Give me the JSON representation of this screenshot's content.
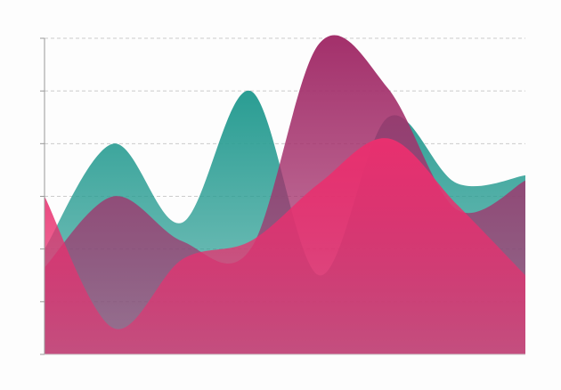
{
  "chart_data": {
    "type": "area",
    "categories": [
      null,
      null,
      null,
      null,
      null,
      null,
      null,
      null
    ],
    "series": [
      {
        "color": "#2a9d93",
        "values": [
          2,
          4,
          2.5,
          5,
          1.5,
          4.5,
          3.25,
          3.4
        ]
      },
      {
        "color": "#a3306b",
        "values": [
          1.65,
          3,
          2.15,
          2,
          5.9,
          5.05,
          2.75,
          3.3
        ]
      },
      {
        "color": "#e8306f",
        "values": [
          3,
          0.5,
          1.8,
          2.15,
          3.25,
          4.1,
          2.85,
          1.5
        ]
      }
    ],
    "ylim": [
      0,
      6
    ],
    "yticks": [
      0,
      1,
      2,
      3,
      4,
      5,
      6
    ],
    "grid": true
  }
}
